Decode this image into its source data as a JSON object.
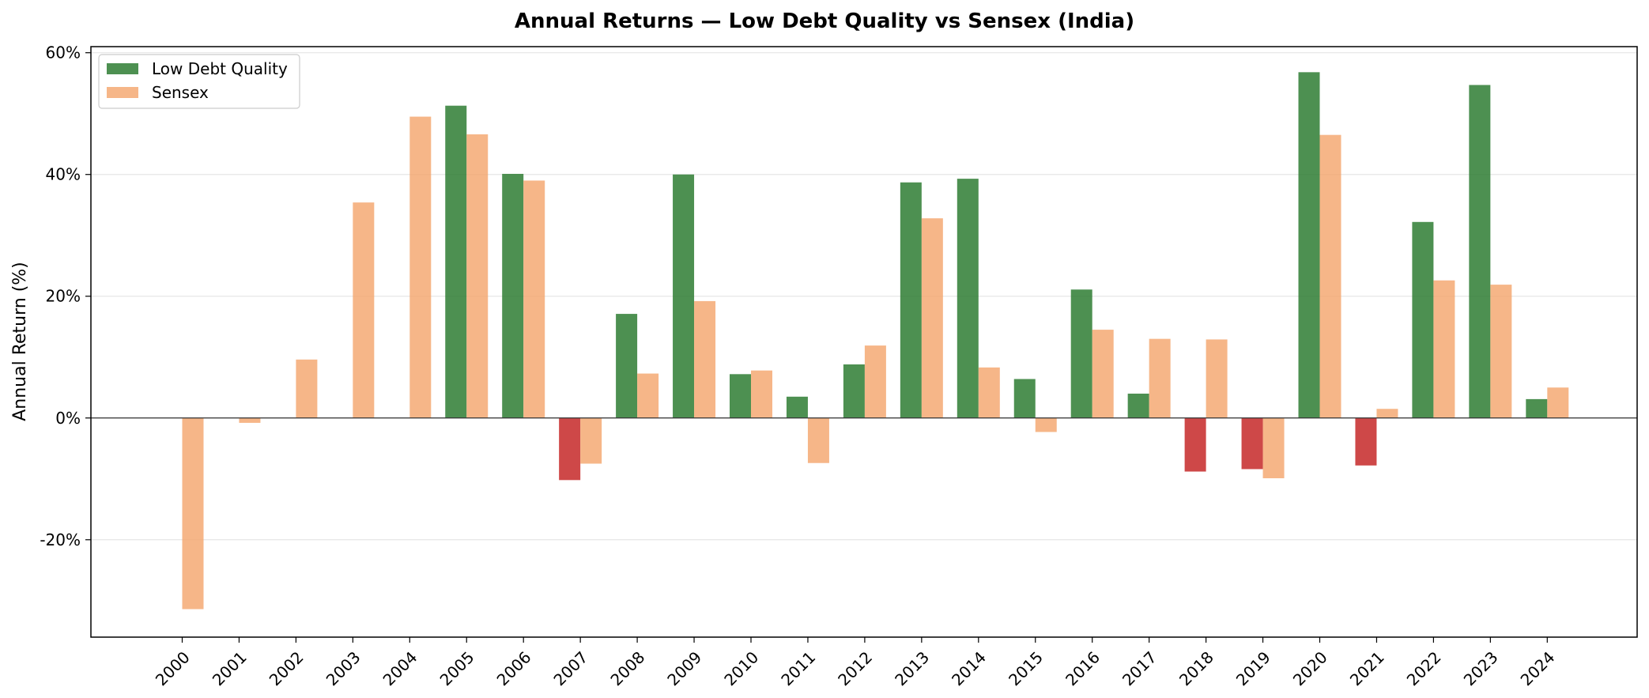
{
  "chart_data": {
    "type": "bar",
    "title": "Annual Returns — Low Debt Quality vs Sensex (India)",
    "xlabel": "",
    "ylabel": "Annual Return (%)",
    "ylim": [
      -36,
      61
    ],
    "yticks": [
      -20,
      0,
      20,
      40,
      60
    ],
    "ytick_labels": [
      "-20%",
      "0%",
      "20%",
      "40%",
      "60%"
    ],
    "grid": "horizontal",
    "legend_position": "top-left",
    "categories": [
      "2000",
      "2001",
      "2002",
      "2003",
      "2004",
      "2005",
      "2006",
      "2007",
      "2008",
      "2009",
      "2010",
      "2011",
      "2012",
      "2013",
      "2014",
      "2015",
      "2016",
      "2017",
      "2018",
      "2019",
      "2020",
      "2021",
      "2022",
      "2023",
      "2024"
    ],
    "series": [
      {
        "name": "Low Debt Quality",
        "color": "#2e7d32",
        "negative_color": "#c62828",
        "values": [
          null,
          null,
          null,
          null,
          null,
          51.3,
          40.1,
          -10.2,
          17.1,
          40.0,
          7.2,
          3.5,
          8.8,
          38.7,
          39.3,
          6.4,
          21.1,
          4.0,
          -8.8,
          -8.4,
          56.8,
          -7.8,
          32.2,
          54.7,
          3.1
        ]
      },
      {
        "name": "Sensex",
        "color": "#f4a46a",
        "values": [
          -31.4,
          -0.8,
          9.6,
          35.4,
          49.5,
          46.6,
          39.0,
          -7.5,
          7.3,
          19.2,
          7.8,
          -7.4,
          11.9,
          32.8,
          8.3,
          -2.3,
          14.5,
          13.0,
          12.9,
          -9.9,
          46.5,
          1.5,
          22.6,
          21.9,
          5.0
        ]
      }
    ]
  }
}
